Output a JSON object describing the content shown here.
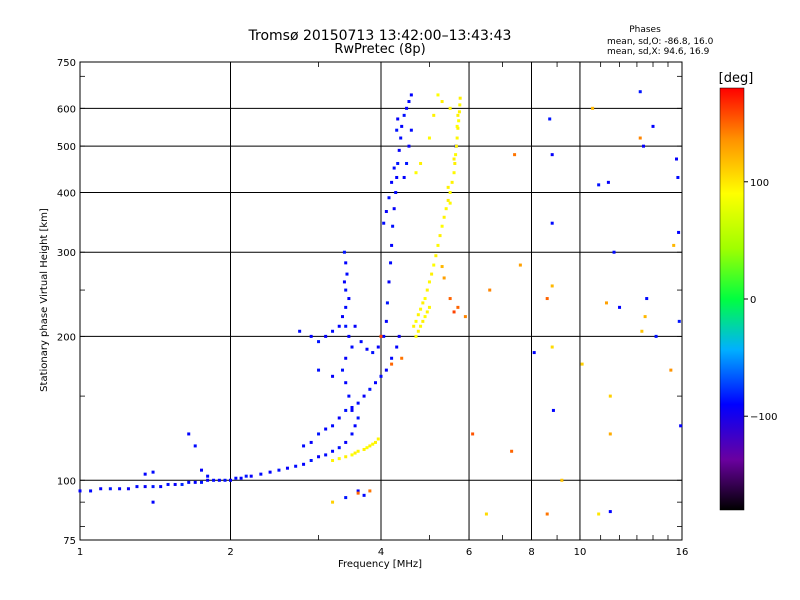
{
  "chart_data": {
    "type": "scatter",
    "title": "Tromsø 20150713 13:42:00–13:43:43",
    "subtitle": "RwPretec (8p)",
    "stats": {
      "heading": "Phases",
      "line1": "mean, sd,O: -86.8, 16.0",
      "line2": "mean, sd,X:  94.6, 16.9"
    },
    "xlabel": "Frequency [MHz]",
    "ylabel": "Stationary phase Virtual Height [km]",
    "x_scale": "log",
    "y_scale": "log",
    "xlim": [
      1,
      16
    ],
    "ylim": [
      75,
      750
    ],
    "x_ticks": [
      1,
      2,
      4,
      6,
      8,
      10,
      16
    ],
    "x_tick_labels": [
      "1",
      "2",
      "4",
      "6",
      "8",
      "10",
      "16"
    ],
    "y_ticks": [
      75,
      100,
      200,
      300,
      400,
      500,
      600,
      750
    ],
    "y_tick_labels": [
      "75",
      "100",
      "200",
      "300",
      "400",
      "500",
      "600",
      "750"
    ],
    "grid": true,
    "colorbar": {
      "label": "[deg]",
      "range": [
        -180,
        180
      ],
      "ticks": [
        100,
        0,
        -100
      ],
      "tick_labels": [
        "100",
        "0",
        "−100"
      ]
    },
    "series": [
      {
        "mode": "O",
        "points": [
          [
            1.0,
            95,
            -90
          ],
          [
            1.05,
            95,
            -88
          ],
          [
            1.1,
            96,
            -92
          ],
          [
            1.15,
            96,
            -85
          ],
          [
            1.2,
            96,
            -90
          ],
          [
            1.25,
            96,
            -95
          ],
          [
            1.3,
            97,
            -88
          ],
          [
            1.35,
            97,
            -92
          ],
          [
            1.4,
            97,
            -85
          ],
          [
            1.45,
            97,
            -90
          ],
          [
            1.5,
            98,
            -87
          ],
          [
            1.55,
            98,
            -93
          ],
          [
            1.6,
            98,
            -80
          ],
          [
            1.65,
            99,
            -88
          ],
          [
            1.7,
            99,
            -90
          ],
          [
            1.75,
            99,
            -85
          ],
          [
            1.8,
            100,
            -92
          ],
          [
            1.85,
            100,
            -88
          ],
          [
            1.9,
            100,
            -90
          ],
          [
            1.95,
            100,
            -86
          ],
          [
            2.0,
            100,
            -92
          ],
          [
            2.05,
            101,
            -88
          ],
          [
            2.1,
            101,
            -90
          ],
          [
            2.15,
            102,
            -85
          ],
          [
            2.2,
            102,
            -92
          ],
          [
            2.3,
            103,
            -88
          ],
          [
            2.4,
            104,
            -90
          ],
          [
            2.5,
            105,
            -86
          ],
          [
            2.6,
            106,
            -92
          ],
          [
            2.7,
            107,
            -88
          ],
          [
            2.8,
            108,
            -90
          ],
          [
            2.9,
            110,
            -85
          ],
          [
            3.0,
            112,
            -92
          ],
          [
            3.1,
            113,
            -88
          ],
          [
            3.2,
            115,
            -90
          ],
          [
            3.3,
            117,
            -86
          ],
          [
            3.4,
            120,
            -92
          ],
          [
            3.5,
            125,
            -88
          ],
          [
            3.55,
            130,
            -90
          ],
          [
            3.6,
            135,
            -85
          ],
          [
            3.5,
            140,
            -92
          ],
          [
            3.45,
            150,
            -88
          ],
          [
            3.4,
            160,
            -90
          ],
          [
            3.35,
            170,
            -86
          ],
          [
            3.4,
            180,
            -92
          ],
          [
            3.5,
            190,
            -88
          ],
          [
            3.45,
            200,
            -90
          ],
          [
            3.4,
            210,
            -85
          ],
          [
            3.35,
            220,
            -92
          ],
          [
            3.4,
            230,
            -88
          ],
          [
            3.45,
            240,
            -90
          ],
          [
            3.4,
            250,
            -86
          ],
          [
            3.38,
            260,
            -92
          ],
          [
            3.42,
            270,
            -88
          ],
          [
            3.4,
            285,
            -90
          ],
          [
            3.38,
            300,
            -85
          ],
          [
            3.55,
            210,
            -92
          ],
          [
            3.65,
            195,
            -88
          ],
          [
            3.75,
            188,
            -90
          ],
          [
            3.85,
            185,
            -86
          ],
          [
            3.95,
            190,
            -92
          ],
          [
            4.05,
            200,
            -88
          ],
          [
            4.1,
            215,
            -90
          ],
          [
            4.12,
            235,
            -85
          ],
          [
            4.15,
            260,
            -92
          ],
          [
            4.18,
            285,
            -88
          ],
          [
            4.2,
            310,
            -90
          ],
          [
            4.22,
            340,
            -86
          ],
          [
            4.25,
            370,
            -92
          ],
          [
            4.28,
            400,
            -88
          ],
          [
            4.3,
            430,
            -90
          ],
          [
            4.32,
            460,
            -85
          ],
          [
            4.35,
            490,
            -92
          ],
          [
            4.38,
            520,
            -88
          ],
          [
            4.4,
            550,
            -90
          ],
          [
            4.45,
            580,
            -86
          ],
          [
            4.5,
            600,
            -92
          ],
          [
            4.55,
            620,
            -88
          ],
          [
            4.6,
            640,
            -90
          ],
          [
            4.3,
            540,
            -85
          ],
          [
            4.32,
            570,
            -92
          ],
          [
            4.25,
            450,
            -88
          ],
          [
            4.2,
            420,
            -90
          ],
          [
            4.15,
            390,
            -86
          ],
          [
            4.1,
            365,
            -92
          ],
          [
            4.05,
            345,
            -88
          ],
          [
            4.45,
            430,
            -90
          ],
          [
            4.5,
            460,
            -85
          ],
          [
            4.55,
            500,
            -92
          ],
          [
            4.6,
            540,
            -88
          ],
          [
            4.35,
            200,
            -95
          ],
          [
            4.3,
            190,
            -90
          ],
          [
            4.2,
            180,
            -88
          ],
          [
            4.1,
            170,
            -92
          ],
          [
            4.0,
            165,
            -88
          ],
          [
            3.9,
            160,
            -90
          ],
          [
            3.8,
            155,
            -85
          ],
          [
            3.7,
            150,
            -92
          ],
          [
            3.6,
            145,
            -88
          ],
          [
            3.5,
            142,
            -90
          ],
          [
            3.4,
            140,
            -86
          ],
          [
            3.3,
            135,
            -92
          ],
          [
            3.2,
            130,
            -88
          ],
          [
            3.1,
            128,
            -90
          ],
          [
            3.0,
            125,
            -85
          ],
          [
            2.9,
            120,
            -92
          ],
          [
            2.8,
            118,
            -88
          ],
          [
            2.75,
            205,
            -88
          ],
          [
            2.9,
            200,
            -90
          ],
          [
            3.0,
            195,
            -85
          ],
          [
            3.1,
            200,
            -92
          ],
          [
            3.2,
            205,
            -88
          ],
          [
            3.3,
            210,
            -90
          ],
          [
            3.0,
            170,
            -86
          ],
          [
            3.2,
            165,
            -92
          ],
          [
            1.65,
            125,
            -90
          ],
          [
            1.7,
            118,
            -88
          ],
          [
            1.75,
            105,
            -92
          ],
          [
            1.8,
            102,
            -88
          ],
          [
            1.35,
            103,
            -90
          ],
          [
            1.4,
            104,
            -88
          ],
          [
            1.4,
            90,
            -90
          ],
          [
            3.4,
            92,
            -85
          ],
          [
            3.6,
            95,
            -92
          ],
          [
            3.7,
            93,
            -88
          ],
          [
            8.1,
            185,
            -90
          ],
          [
            8.7,
            570,
            -85
          ],
          [
            8.8,
            480,
            -92
          ],
          [
            8.8,
            345,
            -88
          ],
          [
            8.85,
            140,
            -90
          ],
          [
            10.9,
            415,
            -86
          ],
          [
            11.4,
            420,
            -92
          ],
          [
            11.7,
            300,
            -88
          ],
          [
            12.0,
            230,
            -90
          ],
          [
            13.2,
            650,
            -85
          ],
          [
            13.4,
            500,
            -92
          ],
          [
            13.6,
            240,
            -88
          ],
          [
            14.0,
            550,
            -90
          ],
          [
            14.2,
            200,
            -86
          ],
          [
            15.6,
            470,
            -92
          ],
          [
            15.7,
            430,
            -88
          ],
          [
            15.75,
            330,
            -90
          ],
          [
            15.8,
            215,
            -85
          ],
          [
            15.9,
            130,
            -92
          ],
          [
            11.5,
            86,
            -90
          ],
          [
            5.65,
            500,
            -88
          ]
        ]
      },
      {
        "mode": "X",
        "points": [
          [
            3.2,
            110,
            95
          ],
          [
            3.3,
            111,
            92
          ],
          [
            3.4,
            112,
            96
          ],
          [
            3.5,
            113,
            90
          ],
          [
            3.55,
            114,
            95
          ],
          [
            3.6,
            115,
            93
          ],
          [
            3.7,
            116,
            96
          ],
          [
            3.75,
            117,
            91
          ],
          [
            3.8,
            118,
            95
          ],
          [
            3.85,
            119,
            92
          ],
          [
            3.9,
            120,
            96
          ],
          [
            3.95,
            122,
            94
          ],
          [
            4.7,
            200,
            90
          ],
          [
            4.75,
            205,
            95
          ],
          [
            4.8,
            210,
            92
          ],
          [
            4.85,
            215,
            96
          ],
          [
            4.9,
            220,
            91
          ],
          [
            4.95,
            225,
            95
          ],
          [
            5.0,
            230,
            93
          ],
          [
            4.65,
            210,
            96
          ],
          [
            4.7,
            215,
            90
          ],
          [
            4.75,
            222,
            95
          ],
          [
            4.8,
            228,
            92
          ],
          [
            4.85,
            235,
            96
          ],
          [
            4.9,
            240,
            91
          ],
          [
            4.95,
            250,
            95
          ],
          [
            5.0,
            260,
            93
          ],
          [
            5.05,
            270,
            96
          ],
          [
            5.1,
            282,
            90
          ],
          [
            5.15,
            295,
            95
          ],
          [
            5.2,
            310,
            92
          ],
          [
            5.25,
            325,
            96
          ],
          [
            5.3,
            340,
            91
          ],
          [
            5.35,
            355,
            95
          ],
          [
            5.4,
            370,
            93
          ],
          [
            5.45,
            385,
            96
          ],
          [
            5.5,
            400,
            90
          ],
          [
            5.55,
            420,
            95
          ],
          [
            5.6,
            440,
            92
          ],
          [
            5.62,
            460,
            96
          ],
          [
            5.64,
            480,
            91
          ],
          [
            5.66,
            500,
            95
          ],
          [
            5.68,
            520,
            93
          ],
          [
            5.7,
            545,
            96
          ],
          [
            5.72,
            565,
            90
          ],
          [
            5.74,
            590,
            95
          ],
          [
            5.75,
            610,
            92
          ],
          [
            5.76,
            630,
            96
          ],
          [
            5.45,
            410,
            95
          ],
          [
            5.5,
            380,
            92
          ],
          [
            5.6,
            470,
            96
          ],
          [
            5.68,
            550,
            91
          ],
          [
            5.7,
            580,
            95
          ],
          [
            5.5,
            600,
            93
          ],
          [
            5.3,
            620,
            96
          ],
          [
            5.2,
            640,
            90
          ],
          [
            5.1,
            580,
            95
          ],
          [
            5.0,
            520,
            92
          ],
          [
            4.8,
            460,
            96
          ],
          [
            4.7,
            440,
            91
          ],
          [
            5.3,
            280,
            120
          ],
          [
            5.35,
            265,
            130
          ],
          [
            5.5,
            240,
            150
          ],
          [
            5.6,
            225,
            160
          ],
          [
            5.7,
            230,
            150
          ],
          [
            5.9,
            220,
            140
          ],
          [
            6.6,
            250,
            140
          ],
          [
            7.6,
            282,
            130
          ],
          [
            7.4,
            480,
            145
          ],
          [
            8.6,
            240,
            150
          ],
          [
            8.8,
            255,
            120
          ],
          [
            8.8,
            190,
            105
          ],
          [
            8.6,
            85,
            145
          ],
          [
            10.6,
            600,
            120
          ],
          [
            10.9,
            85,
            100
          ],
          [
            11.3,
            235,
            130
          ],
          [
            11.5,
            125,
            125
          ],
          [
            11.5,
            150,
            110
          ],
          [
            13.2,
            520,
            140
          ],
          [
            13.3,
            205,
            115
          ],
          [
            13.5,
            220,
            120
          ],
          [
            15.2,
            170,
            135
          ],
          [
            15.4,
            310,
            120
          ],
          [
            6.1,
            125,
            155
          ],
          [
            7.3,
            115,
            150
          ],
          [
            6.5,
            85,
            105
          ],
          [
            9.2,
            100,
            115
          ],
          [
            10.1,
            175,
            110
          ],
          [
            3.6,
            94,
            150
          ],
          [
            3.8,
            95,
            145
          ],
          [
            4.0,
            200,
            160
          ],
          [
            4.2,
            175,
            150
          ],
          [
            4.4,
            180,
            145
          ],
          [
            3.2,
            90,
            110
          ]
        ]
      }
    ]
  }
}
